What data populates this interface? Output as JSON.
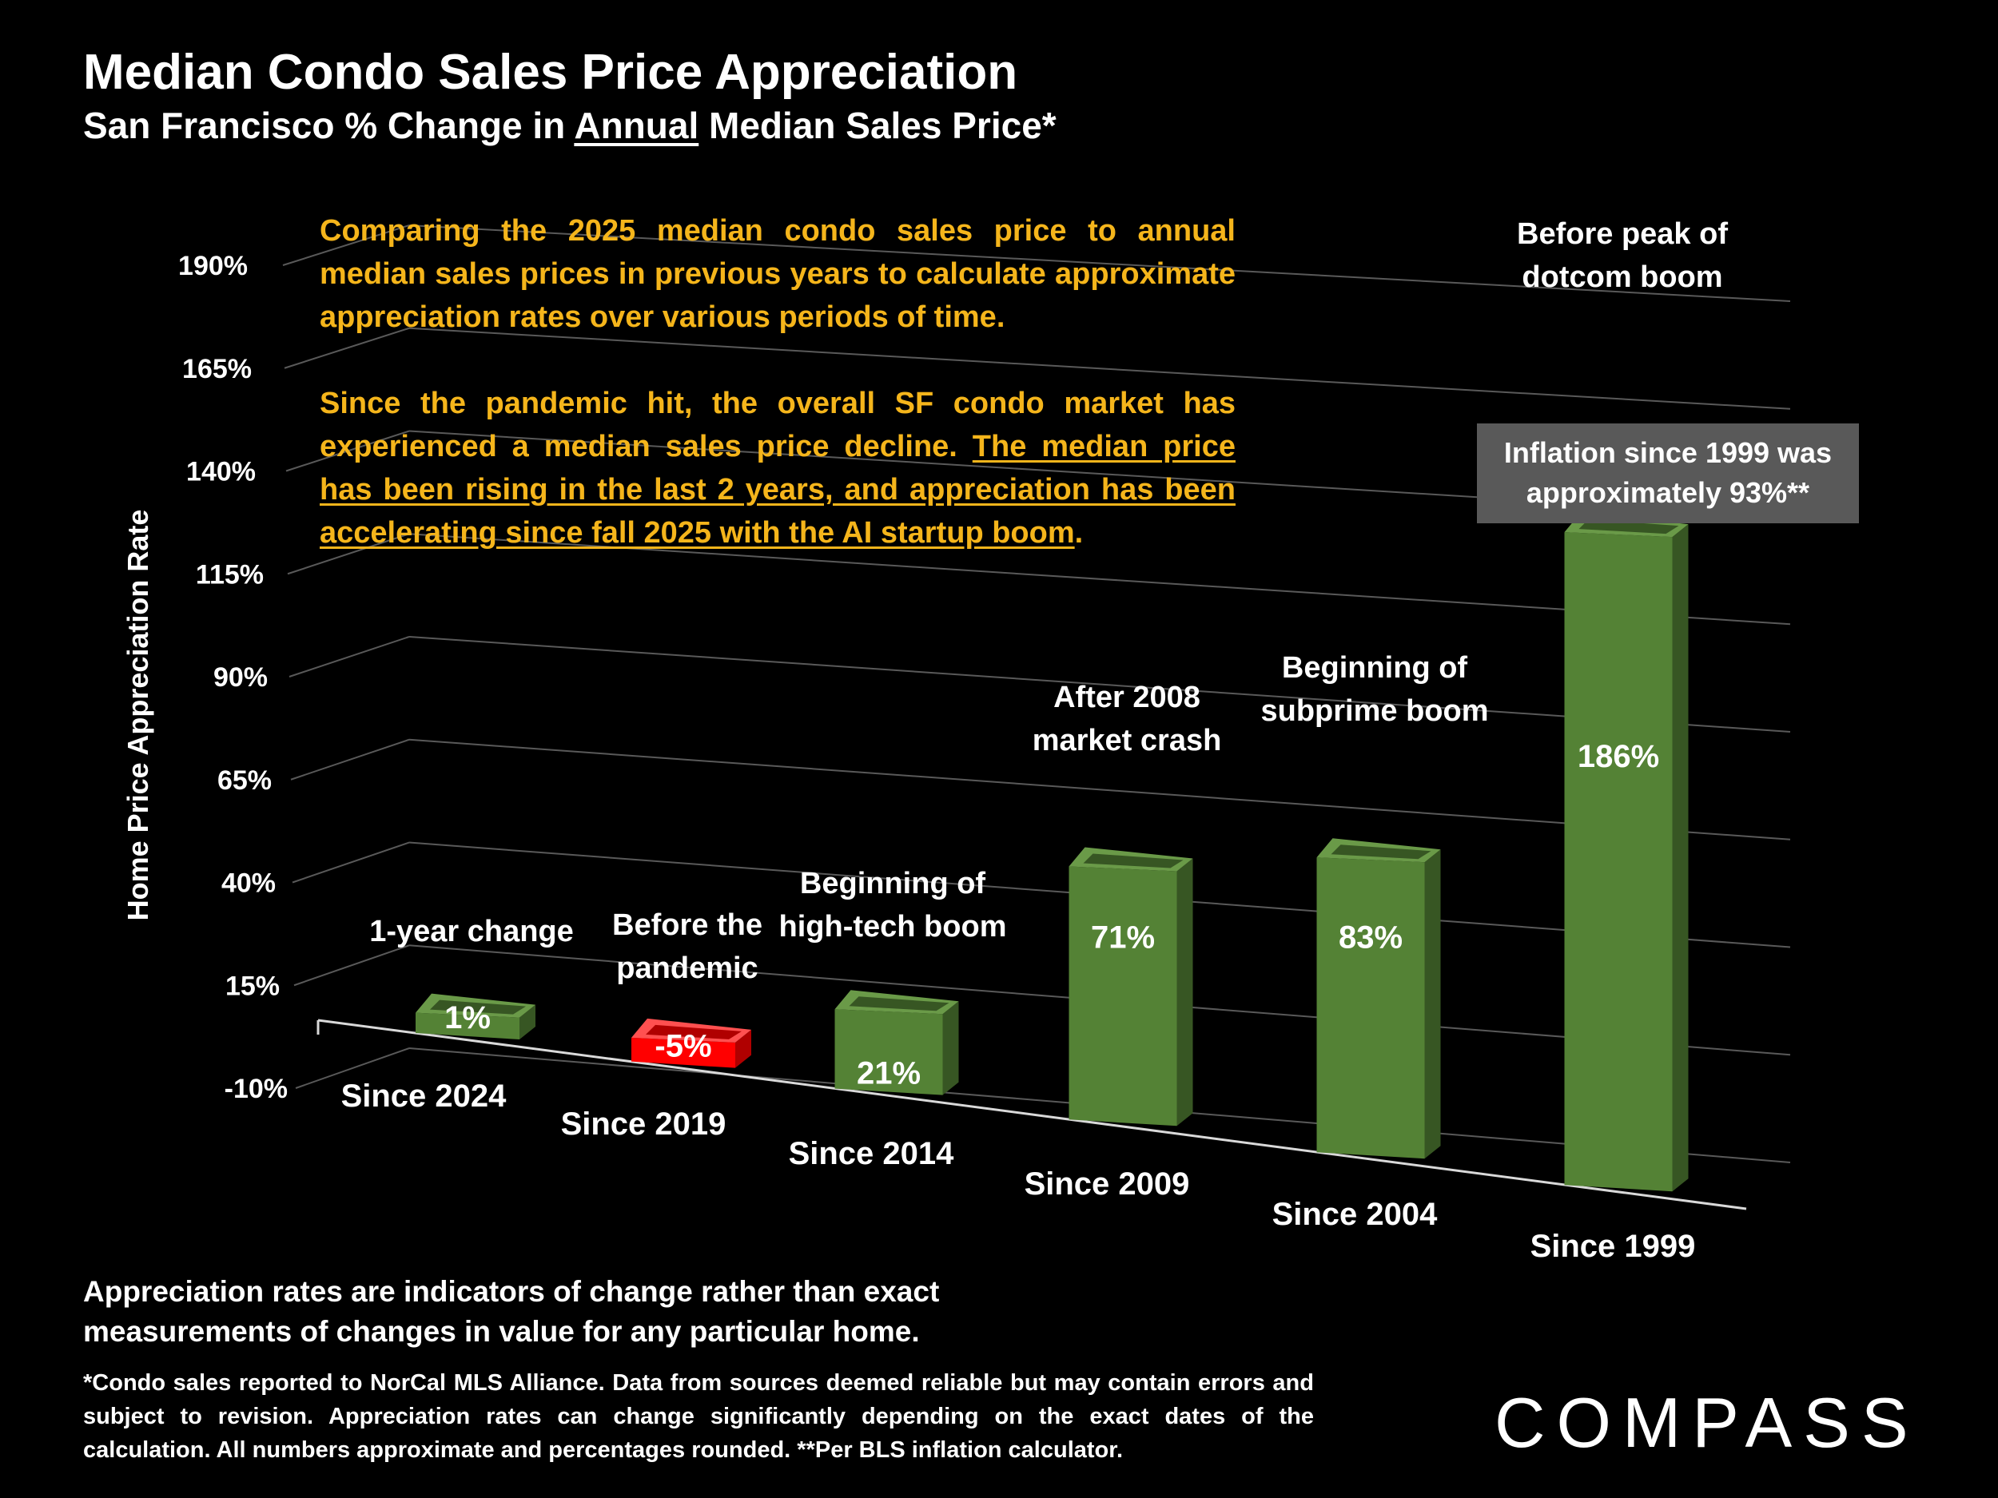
{
  "title": "Median Condo Sales Price Appreciation",
  "subtitle_pre": "San Francisco % Change in ",
  "subtitle_underlined": "Annual",
  "subtitle_post": " Median Sales Price*",
  "intro": {
    "p1": "Comparing the 2025 median condo sales price to annual median sales prices in previous years to calculate approximate appreciation rates over various periods of time.",
    "p2_plain": "Since the pandemic hit, the overall SF condo market has experienced a median sales price decline. ",
    "p2_underlined": "The median price has been rising in the last 2 years, and appreciation has been accelerating since fall 2025 with the AI startup boom",
    "p2_end": "."
  },
  "inflation_note": "Inflation since 1999 was approximately 93%**",
  "footnote_main": "Appreciation rates are indicators of change rather than exact measurements of changes in value for any particular home.",
  "footnote_small": "*Condo sales reported to NorCal MLS Alliance. Data from sources deemed reliable but may contain errors and subject to revision. Appreciation rates can change significantly depending on the exact dates of the calculation. All numbers  approximate and percentages rounded. **Per BLS inflation calculator.",
  "logo_text": "COMPASS",
  "colors": {
    "positive": "#548235",
    "negative": "#ff0000",
    "annotation": "#f5b51b",
    "background": "#000000"
  },
  "chart_data": {
    "type": "bar",
    "title": "",
    "ylabel": "Home Price Appreciation Rate",
    "xlabel": "",
    "ylim": [
      -10,
      190
    ],
    "yticks": [
      "-10%",
      "15%",
      "40%",
      "65%",
      "90%",
      "115%",
      "140%",
      "165%",
      "190%"
    ],
    "categories": [
      "Since 2024",
      "Since 2019",
      "Since 2014",
      "Since 2009",
      "Since 2004",
      "Since 1999"
    ],
    "values": [
      1,
      -5,
      21,
      71,
      83,
      186
    ],
    "value_labels": [
      "1%",
      "-5%",
      "21%",
      "71%",
      "83%",
      "186%"
    ],
    "annotations": [
      [
        "1-year change"
      ],
      [
        "Before the",
        "pandemic"
      ],
      [
        "Beginning of",
        "high-tech boom"
      ],
      [
        "After 2008",
        "market crash"
      ],
      [
        "Beginning of",
        "subprime boom"
      ],
      [
        "Before peak of",
        "dotcom boom"
      ]
    ],
    "grid": true,
    "legend": "none"
  }
}
